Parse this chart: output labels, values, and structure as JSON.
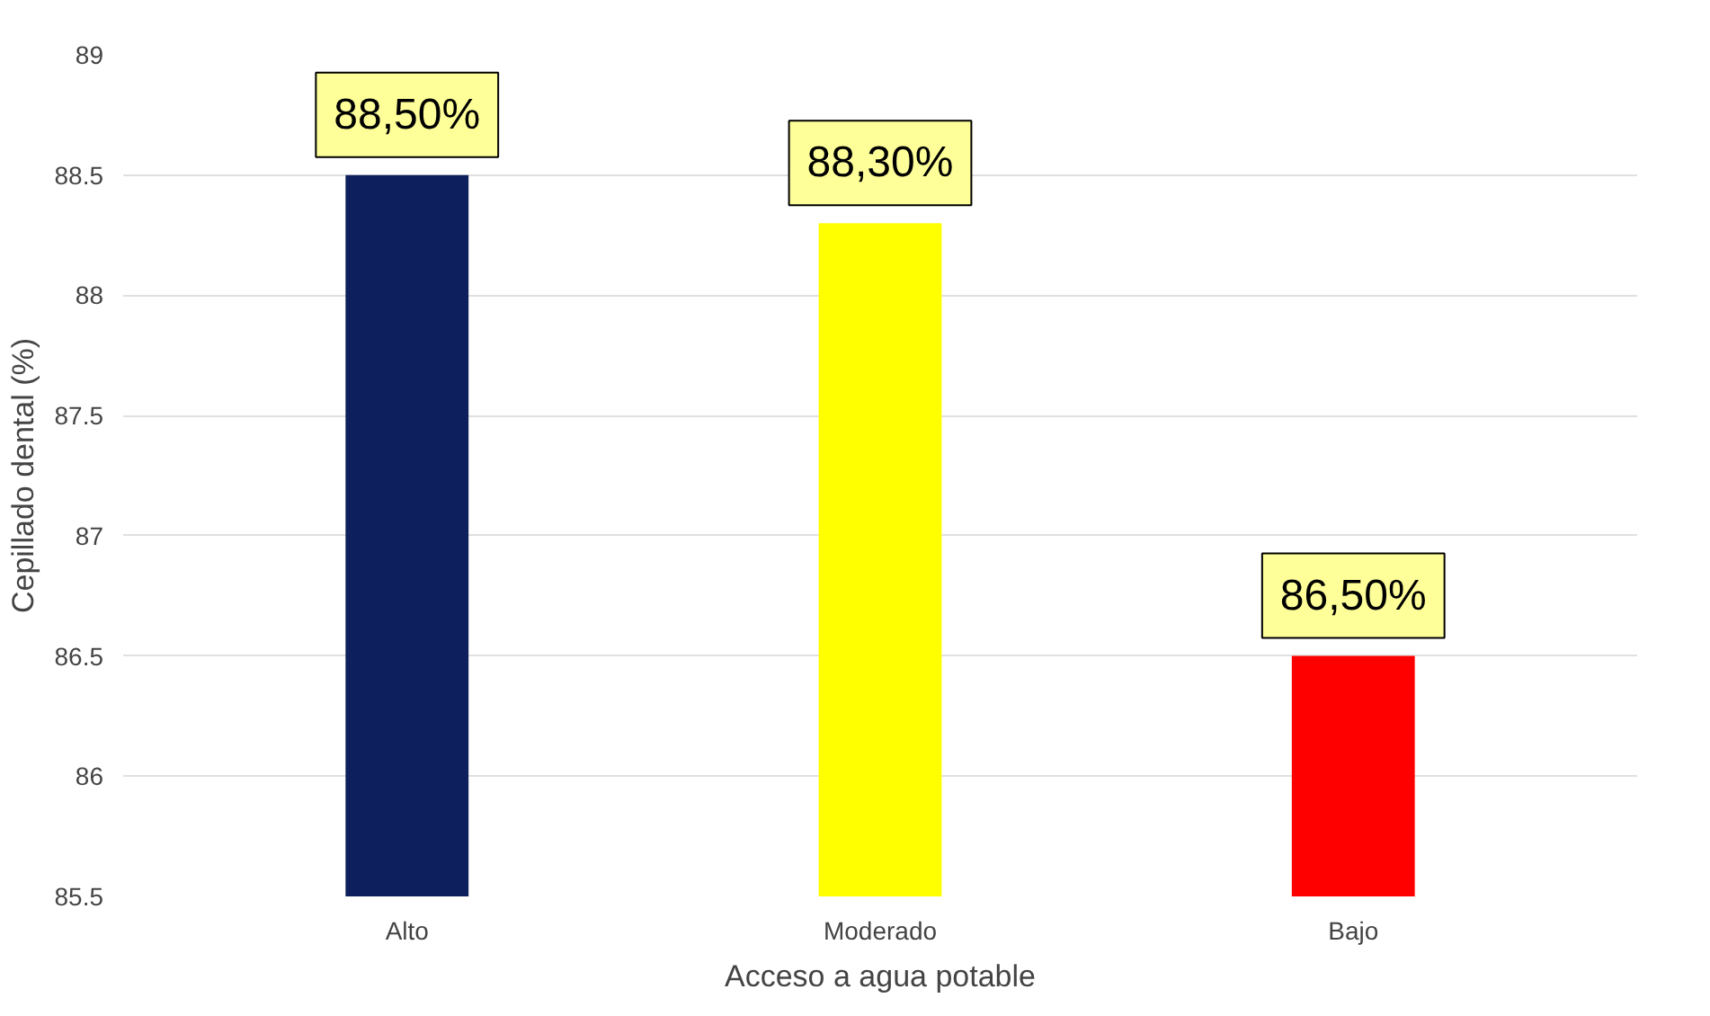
{
  "chart_data": {
    "type": "bar",
    "xlabel": "Acceso a agua potable",
    "ylabel": "Cepillado dental (%)",
    "categories": [
      "Alto",
      "Moderado",
      "Bajo"
    ],
    "values": [
      88.5,
      88.3,
      86.5
    ],
    "colors": [
      "#0d1f5c",
      "#ffff00",
      "#ff0000"
    ],
    "value_labels": [
      "88,50%",
      "88,30%",
      "86,50%"
    ],
    "ylim": [
      85.5,
      89
    ],
    "yticks": [
      85.5,
      86,
      86.5,
      87,
      87.5,
      88,
      88.5,
      89
    ],
    "grid": "y"
  }
}
